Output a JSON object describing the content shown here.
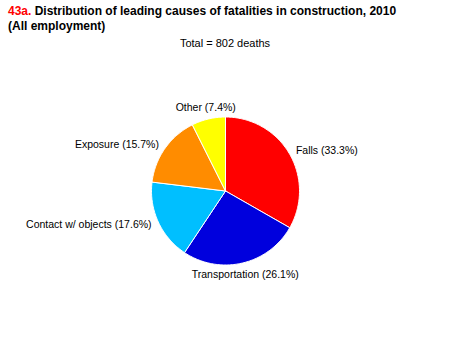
{
  "chart_data": {
    "type": "pie",
    "title": "43a. Distribution of leading causes of fatalities in construction, 2010\n(All employment)",
    "subtitle": "Total = 802 deaths",
    "categories": [
      "Falls (33.3%)",
      "Transportation (26.1%)",
      "Contact w/ objects (17.6%)",
      "Exposure (15.7%)",
      "Other (7.4%)"
    ],
    "values": [
      33.3,
      26.1,
      17.6,
      15.7,
      7.4
    ],
    "colors": [
      "#FF0000",
      "#0000DD",
      "#00BFFF",
      "#FF8C00",
      "#FFFF00"
    ]
  }
}
